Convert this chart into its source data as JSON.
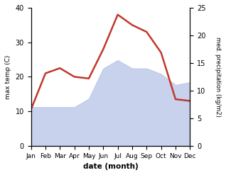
{
  "months": [
    "Jan",
    "Feb",
    "Mar",
    "Apr",
    "May",
    "Jun",
    "Jul",
    "Aug",
    "Sep",
    "Oct",
    "Nov",
    "Dec"
  ],
  "temperature": [
    10.5,
    21.0,
    22.5,
    20.0,
    19.5,
    28.0,
    38.0,
    35.0,
    33.0,
    27.0,
    13.5,
    13.0
  ],
  "precipitation": [
    7,
    7,
    7,
    7,
    8.5,
    14,
    15.5,
    14,
    14,
    13,
    11,
    11.5
  ],
  "temp_color": "#c0392b",
  "precip_fill_color": "#b8c4e8",
  "temp_ylim": [
    0,
    40
  ],
  "precip_ylim": [
    0,
    25
  ],
  "temp_yticks": [
    0,
    10,
    20,
    30,
    40
  ],
  "precip_yticks": [
    0,
    5,
    10,
    15,
    20,
    25
  ],
  "ylabel_left": "max temp (C)",
  "ylabel_right": "med. precipitation (kg/m2)",
  "xlabel": "date (month)",
  "background_color": "#ffffff",
  "temp_linewidth": 1.8
}
